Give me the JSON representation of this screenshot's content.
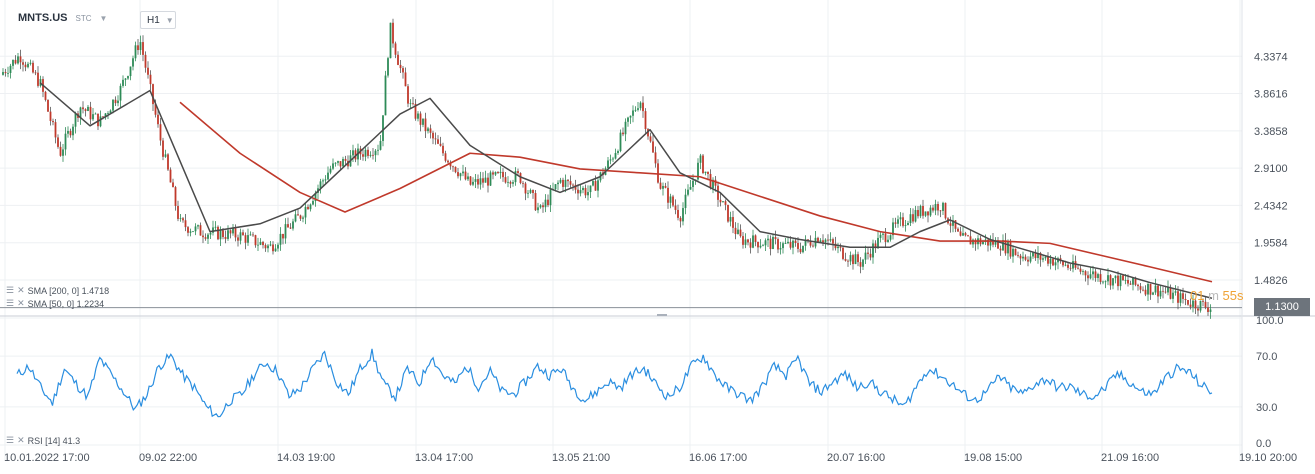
{
  "header": {
    "symbol": "MNTS.US",
    "market": "STC",
    "timeframe": "H1"
  },
  "indicators": {
    "sma200": {
      "label": "SMA [200, 0] 1.4718",
      "color": "#c0392b"
    },
    "sma50": {
      "label": "SMA [50, 0] 1.2234",
      "color": "#4a4a4a"
    },
    "rsi": {
      "label": "RSI [14] 41.3",
      "color": "#2a8ee0"
    }
  },
  "price_tag": "1.1300",
  "timer": {
    "minutes": "01",
    "seconds": "55s"
  },
  "chart_data": [
    {
      "type": "candlestick",
      "y_ticks": [
        "4.3374",
        "3.8616",
        "3.3858",
        "2.9100",
        "2.4342",
        "1.9584",
        "1.4826"
      ],
      "ylim": [
        1.1,
        4.8
      ],
      "x_ticks": [
        "10.01.2022  17:00",
        "09.02  22:00",
        "14.03  19:00",
        "13.04  17:00",
        "13.05  21:00",
        "16.06  17:00",
        "20.07  16:00",
        "19.08  15:00",
        "21.09  16:00",
        "19.10  20:00"
      ],
      "current_price": 1.13,
      "price_path": [
        [
          0,
          4.1
        ],
        [
          20,
          4.35
        ],
        [
          40,
          4.0
        ],
        [
          60,
          3.1
        ],
        [
          80,
          3.7
        ],
        [
          100,
          3.5
        ],
        [
          120,
          3.9
        ],
        [
          140,
          4.55
        ],
        [
          160,
          3.3
        ],
        [
          180,
          2.2
        ],
        [
          200,
          2.1
        ],
        [
          240,
          2.05
        ],
        [
          270,
          1.9
        ],
        [
          300,
          2.3
        ],
        [
          330,
          2.9
        ],
        [
          360,
          3.1
        ],
        [
          380,
          3.2
        ],
        [
          390,
          4.7
        ],
        [
          410,
          3.7
        ],
        [
          440,
          3.15
        ],
        [
          470,
          2.7
        ],
        [
          500,
          2.8
        ],
        [
          520,
          2.8
        ],
        [
          540,
          2.35
        ],
        [
          560,
          2.75
        ],
        [
          590,
          2.6
        ],
        [
          610,
          3.0
        ],
        [
          640,
          3.8
        ],
        [
          660,
          2.7
        ],
        [
          680,
          2.3
        ],
        [
          700,
          3.0
        ],
        [
          720,
          2.5
        ],
        [
          740,
          2.0
        ],
        [
          770,
          1.95
        ],
        [
          800,
          1.9
        ],
        [
          820,
          2.05
        ],
        [
          840,
          1.85
        ],
        [
          860,
          1.7
        ],
        [
          880,
          2.0
        ],
        [
          910,
          2.3
        ],
        [
          940,
          2.45
        ],
        [
          960,
          2.0
        ],
        [
          1000,
          1.95
        ],
        [
          1020,
          1.8
        ],
        [
          1050,
          1.75
        ],
        [
          1080,
          1.6
        ],
        [
          1110,
          1.5
        ],
        [
          1140,
          1.4
        ],
        [
          1160,
          1.35
        ],
        [
          1190,
          1.2
        ],
        [
          1212,
          1.13
        ]
      ],
      "sma200_path": [
        [
          180,
          3.75
        ],
        [
          240,
          3.1
        ],
        [
          300,
          2.6
        ],
        [
          345,
          2.35
        ],
        [
          400,
          2.65
        ],
        [
          470,
          3.1
        ],
        [
          520,
          3.05
        ],
        [
          580,
          2.9
        ],
        [
          640,
          2.85
        ],
        [
          700,
          2.8
        ],
        [
          760,
          2.55
        ],
        [
          820,
          2.3
        ],
        [
          880,
          2.1
        ],
        [
          940,
          1.98
        ],
        [
          1000,
          1.98
        ],
        [
          1050,
          1.95
        ],
        [
          1100,
          1.8
        ],
        [
          1150,
          1.65
        ],
        [
          1212,
          1.46
        ]
      ],
      "sma50_path": [
        [
          40,
          4.0
        ],
        [
          90,
          3.45
        ],
        [
          150,
          3.9
        ],
        [
          180,
          3.0
        ],
        [
          210,
          2.1
        ],
        [
          260,
          2.2
        ],
        [
          300,
          2.4
        ],
        [
          350,
          3.0
        ],
        [
          400,
          3.6
        ],
        [
          430,
          3.8
        ],
        [
          470,
          3.2
        ],
        [
          520,
          2.8
        ],
        [
          560,
          2.6
        ],
        [
          600,
          2.8
        ],
        [
          650,
          3.4
        ],
        [
          680,
          2.85
        ],
        [
          720,
          2.6
        ],
        [
          760,
          2.1
        ],
        [
          800,
          2.0
        ],
        [
          850,
          1.9
        ],
        [
          890,
          1.9
        ],
        [
          920,
          2.1
        ],
        [
          950,
          2.25
        ],
        [
          990,
          2.0
        ],
        [
          1030,
          1.85
        ],
        [
          1070,
          1.7
        ],
        [
          1110,
          1.6
        ],
        [
          1150,
          1.45
        ],
        [
          1212,
          1.25
        ]
      ]
    },
    {
      "type": "line",
      "ylim": [
        0,
        100
      ],
      "y_ticks": [
        "100.0",
        "70.0",
        "30.0",
        "0.0"
      ],
      "series": [
        {
          "values": [
            55,
            62,
            45,
            33,
            60,
            48,
            38,
            68,
            55,
            42,
            28,
            40,
            62,
            70,
            55,
            45,
            30,
            22,
            35,
            40,
            55,
            65,
            58,
            38,
            45,
            60,
            72,
            50,
            40,
            60,
            72,
            48,
            38,
            60,
            48,
            70,
            55,
            48,
            62,
            46,
            58,
            42,
            40,
            50,
            62,
            55,
            60,
            45,
            35,
            42,
            50,
            45,
            56,
            60,
            48,
            38,
            45,
            62,
            70,
            55,
            45,
            40,
            35,
            46,
            62,
            55,
            68,
            48,
            42,
            50,
            56,
            45,
            50,
            42,
            36,
            30,
            46,
            60,
            55,
            48,
            40,
            35,
            42,
            54,
            45,
            40,
            48,
            52,
            45,
            46,
            40,
            38,
            45,
            56,
            50,
            42,
            40,
            52,
            60,
            58,
            48,
            41
          ]
        }
      ]
    }
  ]
}
